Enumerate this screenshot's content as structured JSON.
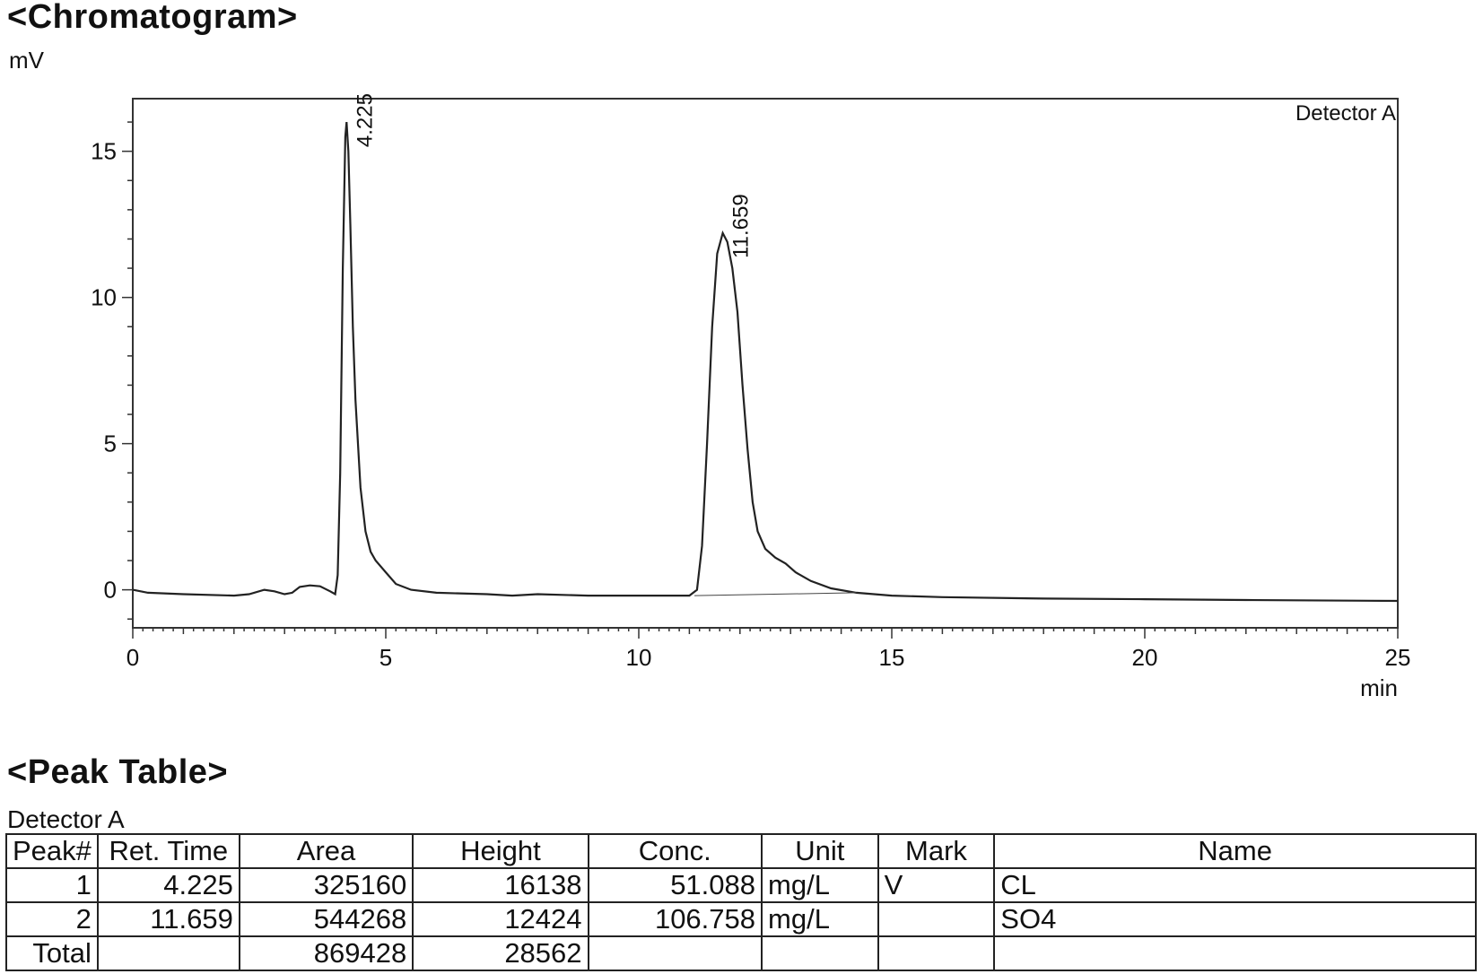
{
  "chromatogram": {
    "title": "<Chromatogram>",
    "y_unit": "mV",
    "x_unit": "min",
    "detector_label": "Detector A"
  },
  "chart_data": {
    "type": "line",
    "title": "<Chromatogram>",
    "ylabel": "mV",
    "xlabel": "min",
    "xlim": [
      0,
      25
    ],
    "ylim": [
      -1.3,
      16.8
    ],
    "x_ticks": [
      0,
      5,
      10,
      15,
      20,
      25
    ],
    "y_ticks": [
      0,
      5,
      10,
      15
    ],
    "grid": false,
    "legend": "Detector A",
    "series": [
      {
        "name": "Detector A",
        "points": [
          [
            0,
            0.0
          ],
          [
            0.3,
            -0.1
          ],
          [
            1.0,
            -0.15
          ],
          [
            2.0,
            -0.2
          ],
          [
            2.3,
            -0.15
          ],
          [
            2.6,
            0.0
          ],
          [
            2.8,
            -0.05
          ],
          [
            3.0,
            -0.15
          ],
          [
            3.15,
            -0.1
          ],
          [
            3.3,
            0.1
          ],
          [
            3.5,
            0.15
          ],
          [
            3.7,
            0.12
          ],
          [
            3.9,
            -0.05
          ],
          [
            4.0,
            -0.15
          ],
          [
            4.05,
            0.5
          ],
          [
            4.1,
            4.0
          ],
          [
            4.15,
            11.0
          ],
          [
            4.2,
            15.5
          ],
          [
            4.225,
            16.0
          ],
          [
            4.26,
            15.0
          ],
          [
            4.3,
            12.5
          ],
          [
            4.35,
            9.0
          ],
          [
            4.4,
            6.5
          ],
          [
            4.5,
            3.5
          ],
          [
            4.6,
            2.0
          ],
          [
            4.7,
            1.3
          ],
          [
            4.8,
            1.0
          ],
          [
            5.0,
            0.6
          ],
          [
            5.2,
            0.2
          ],
          [
            5.5,
            0.0
          ],
          [
            6.0,
            -0.1
          ],
          [
            7.0,
            -0.15
          ],
          [
            7.5,
            -0.2
          ],
          [
            8.0,
            -0.15
          ],
          [
            9.0,
            -0.2
          ],
          [
            10.0,
            -0.2
          ],
          [
            11.0,
            -0.2
          ],
          [
            11.15,
            0.0
          ],
          [
            11.25,
            1.5
          ],
          [
            11.35,
            5.0
          ],
          [
            11.45,
            9.0
          ],
          [
            11.55,
            11.5
          ],
          [
            11.659,
            12.2
          ],
          [
            11.75,
            11.9
          ],
          [
            11.85,
            11.0
          ],
          [
            11.95,
            9.5
          ],
          [
            12.05,
            7.0
          ],
          [
            12.15,
            4.8
          ],
          [
            12.25,
            3.0
          ],
          [
            12.35,
            2.0
          ],
          [
            12.5,
            1.4
          ],
          [
            12.7,
            1.1
          ],
          [
            12.9,
            0.9
          ],
          [
            13.1,
            0.6
          ],
          [
            13.4,
            0.3
          ],
          [
            13.8,
            0.05
          ],
          [
            14.3,
            -0.1
          ],
          [
            15.0,
            -0.2
          ],
          [
            16.0,
            -0.25
          ],
          [
            18.0,
            -0.3
          ],
          [
            20.0,
            -0.32
          ],
          [
            22.0,
            -0.35
          ],
          [
            25.0,
            -0.38
          ]
        ]
      }
    ],
    "annotations": [
      {
        "x": 4.225,
        "y": 16.0,
        "label": "4.225"
      },
      {
        "x": 11.659,
        "y": 12.2,
        "label": "11.659"
      }
    ]
  },
  "peak_table": {
    "title": "<Peak Table>",
    "detector": "Detector A",
    "headers": [
      "Peak#",
      "Ret. Time",
      "Area",
      "Height",
      "Conc.",
      "Unit",
      "Mark",
      "Name"
    ],
    "rows": [
      [
        "1",
        "4.225",
        "325160",
        "16138",
        "51.088",
        "mg/L",
        "V",
        "CL"
      ],
      [
        "2",
        "11.659",
        "544268",
        "12424",
        "106.758",
        "mg/L",
        "",
        "SO4"
      ]
    ],
    "total": {
      "label": "Total",
      "area": "869428",
      "height": "28562"
    }
  }
}
